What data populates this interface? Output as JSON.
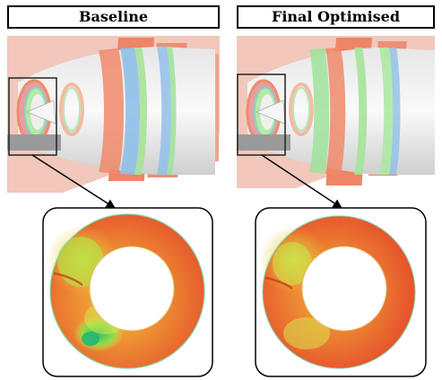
{
  "panels": {
    "left": {
      "title": "Baseline"
    },
    "right": {
      "title": "Final Optimised"
    }
  },
  "colors": {
    "surface_orange": "#ee8a6e",
    "surface_blue": "#8fb8e6",
    "surface_green": "#9ee39a",
    "contour_red": "#e5402a",
    "contour_orange": "#f29a2e",
    "contour_yellow": "#e7e23a",
    "contour_green": "#4fc94a"
  }
}
